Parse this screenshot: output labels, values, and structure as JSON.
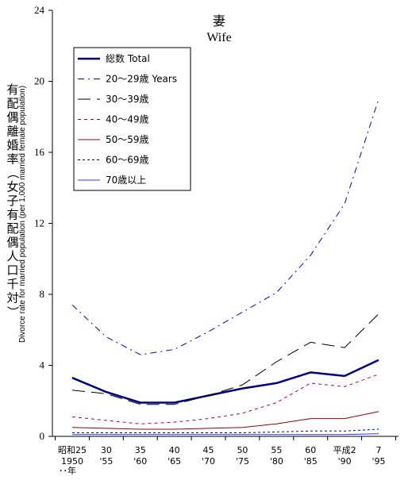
{
  "chart_data": {
    "type": "line",
    "title": "妻",
    "subtitle": "Wife",
    "ylabel_jp": "有配偶離婚率（女子有配偶人口千対）",
    "ylabel_en": "Divorce rate for married population (per 1,000 married female population)",
    "ylim": [
      0,
      24
    ],
    "yticks": [
      0,
      4,
      8,
      12,
      16,
      20,
      24
    ],
    "x": [
      1950,
      1955,
      1960,
      1965,
      1970,
      1975,
      1980,
      1985,
      1990,
      1995
    ],
    "x_tick_top": [
      "昭和25",
      "30",
      "35",
      "40",
      "45",
      "50",
      "55",
      "60",
      "平成2",
      "7"
    ],
    "x_tick_bottom": [
      "1950",
      "'55",
      "'60",
      "'65",
      "'70",
      "'75",
      "'80",
      "'85",
      "'90",
      "'95"
    ],
    "x_unit_label": "･･年",
    "legend_position": "top-left",
    "series": [
      {
        "name": "総数 Total",
        "color": "#000080",
        "dash": "",
        "width": 2.5,
        "values": [
          3.3,
          2.5,
          1.9,
          1.9,
          2.3,
          2.7,
          3.0,
          3.6,
          3.4,
          4.3
        ]
      },
      {
        "name": "20～29歳 Years",
        "color": "#0000CC",
        "dash": "8,5,2,5",
        "width": 1,
        "values": [
          7.4,
          5.6,
          4.6,
          4.9,
          5.9,
          7.0,
          8.1,
          10.2,
          13.1,
          19.0
        ]
      },
      {
        "name": "30～39歳",
        "color": "#000000",
        "dash": "16,8",
        "width": 1,
        "values": [
          2.6,
          2.4,
          1.8,
          1.8,
          2.3,
          2.9,
          4.2,
          5.3,
          5.0,
          6.9
        ]
      },
      {
        "name": "40～49歳",
        "color": "#990066",
        "dash": "4,4",
        "width": 1,
        "values": [
          1.1,
          0.9,
          0.7,
          0.8,
          1.0,
          1.3,
          1.9,
          3.0,
          2.8,
          3.5
        ]
      },
      {
        "name": "50～59歳",
        "color": "#990000",
        "dash": "",
        "width": 1,
        "values": [
          0.5,
          0.45,
          0.4,
          0.4,
          0.45,
          0.5,
          0.7,
          1.0,
          1.0,
          1.4
        ]
      },
      {
        "name": "60～69歳",
        "color": "#0000AA",
        "dash": "3,3",
        "width": 1,
        "values": [
          0.2,
          0.2,
          0.2,
          0.2,
          0.2,
          0.2,
          0.25,
          0.3,
          0.3,
          0.4
        ]
      },
      {
        "name": "70歳以上",
        "color": "#3333FF",
        "dash": "",
        "width": 1,
        "values": [
          0.1,
          0.1,
          0.1,
          0.1,
          0.1,
          0.1,
          0.1,
          0.1,
          0.1,
          0.15
        ]
      }
    ]
  }
}
